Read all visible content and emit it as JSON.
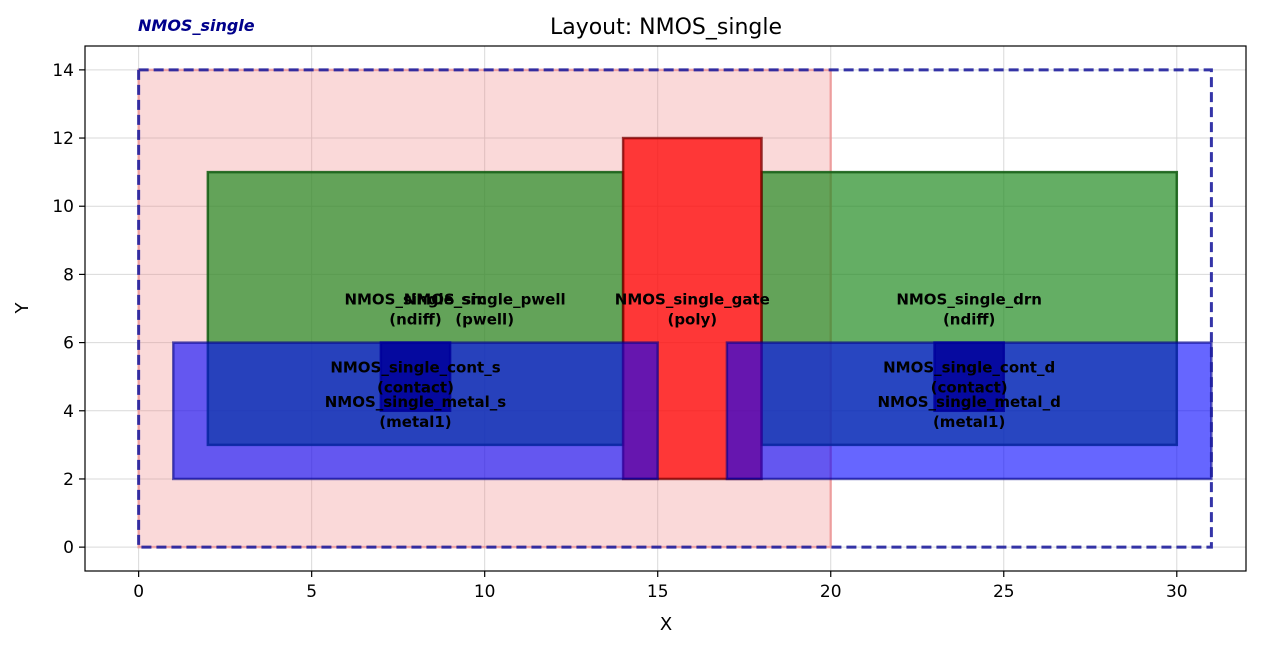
{
  "header": {
    "cell_name": "NMOS_single",
    "cell_name_color": "#00008b",
    "title": "Layout: NMOS_single"
  },
  "axes": {
    "xlabel": "X",
    "ylabel": "Y",
    "xlim": [
      -1.55,
      32.0
    ],
    "ylim": [
      -0.7,
      14.7
    ],
    "xticks": [
      0,
      5,
      10,
      15,
      20,
      25,
      30
    ],
    "yticks": [
      0,
      2,
      4,
      6,
      8,
      10,
      12,
      14
    ],
    "grid": true
  },
  "layout": {
    "bounding_box": {
      "x0": 0,
      "y0": 0,
      "x1": 31,
      "y1": 14,
      "stroke": "#1f1f9e"
    },
    "shapes": [
      {
        "id": "pwell",
        "x0": 0,
        "y0": 0,
        "x1": 20,
        "y1": 14,
        "fill": "#f08080",
        "fill_opacity": 0.3,
        "stroke": "#f08080",
        "stroke_opacity": 0.6,
        "label": [
          "NMOS_single_pwell",
          "(pwell)"
        ],
        "label_at": [
          10,
          7
        ]
      },
      {
        "id": "src",
        "x0": 2,
        "y0": 3,
        "x1": 14,
        "y1": 11,
        "fill": "#228b22",
        "fill_opacity": 0.7,
        "stroke": "#176117",
        "stroke_opacity": 0.9,
        "label": [
          "NMOS_single_src",
          "(ndiff)"
        ],
        "label_at": [
          8,
          7
        ]
      },
      {
        "id": "drn",
        "x0": 18,
        "y0": 3,
        "x1": 30,
        "y1": 11,
        "fill": "#228b22",
        "fill_opacity": 0.7,
        "stroke": "#176117",
        "stroke_opacity": 0.9,
        "label": [
          "NMOS_single_drn",
          "(ndiff)"
        ],
        "label_at": [
          24,
          7
        ]
      },
      {
        "id": "gate",
        "x0": 14,
        "y0": 2,
        "x1": 18,
        "y1": 12,
        "fill": "#ff0000",
        "fill_opacity": 0.75,
        "stroke": "#7a0000",
        "stroke_opacity": 0.75,
        "label": [
          "NMOS_single_gate",
          "(poly)"
        ],
        "label_at": [
          16,
          7
        ]
      },
      {
        "id": "metal_s",
        "x0": 1,
        "y0": 2,
        "x1": 15,
        "y1": 6,
        "fill": "#0000ff",
        "fill_opacity": 0.6,
        "stroke": "#00008b",
        "stroke_opacity": 0.6,
        "label": [
          "NMOS_single_metal_s",
          "(metal1)"
        ],
        "label_at": [
          8,
          4
        ]
      },
      {
        "id": "metal_d",
        "x0": 17,
        "y0": 2,
        "x1": 31,
        "y1": 6,
        "fill": "#0000ff",
        "fill_opacity": 0.6,
        "stroke": "#00008b",
        "stroke_opacity": 0.6,
        "label": [
          "NMOS_single_metal_d",
          "(metal1)"
        ],
        "label_at": [
          24,
          4
        ]
      },
      {
        "id": "cont_s",
        "x0": 7,
        "y0": 4,
        "x1": 9,
        "y1": 6,
        "fill": "#00009a",
        "fill_opacity": 0.85,
        "stroke": "#00009a",
        "stroke_opacity": 0.85,
        "label": [
          "NMOS_single_cont_s",
          "(contact)"
        ],
        "label_at": [
          8,
          5
        ]
      },
      {
        "id": "cont_d",
        "x0": 23,
        "y0": 4,
        "x1": 25,
        "y1": 6,
        "fill": "#00009a",
        "fill_opacity": 0.85,
        "stroke": "#00009a",
        "stroke_opacity": 0.85,
        "label": [
          "NMOS_single_cont_d",
          "(contact)"
        ],
        "label_at": [
          24,
          5
        ]
      }
    ]
  }
}
